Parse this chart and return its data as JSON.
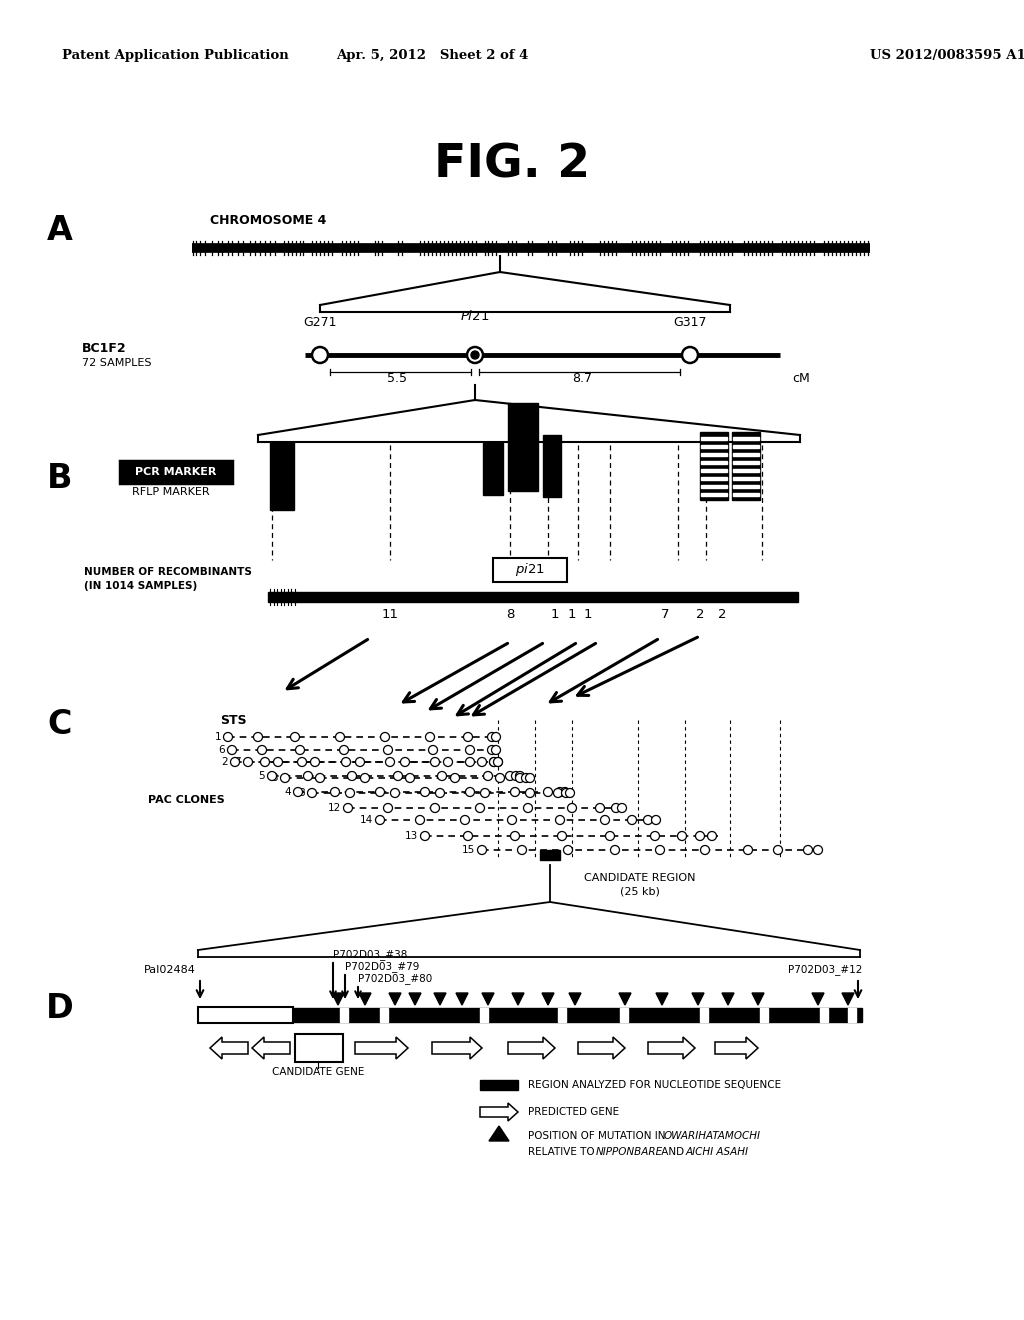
{
  "header_left": "Patent Application Publication",
  "header_mid": "Apr. 5, 2012   Sheet 2 of 4",
  "header_right": "US 2012/0083595 A1",
  "fig_title": "FIG. 2",
  "bg": "#ffffff",
  "fg": "#000000"
}
